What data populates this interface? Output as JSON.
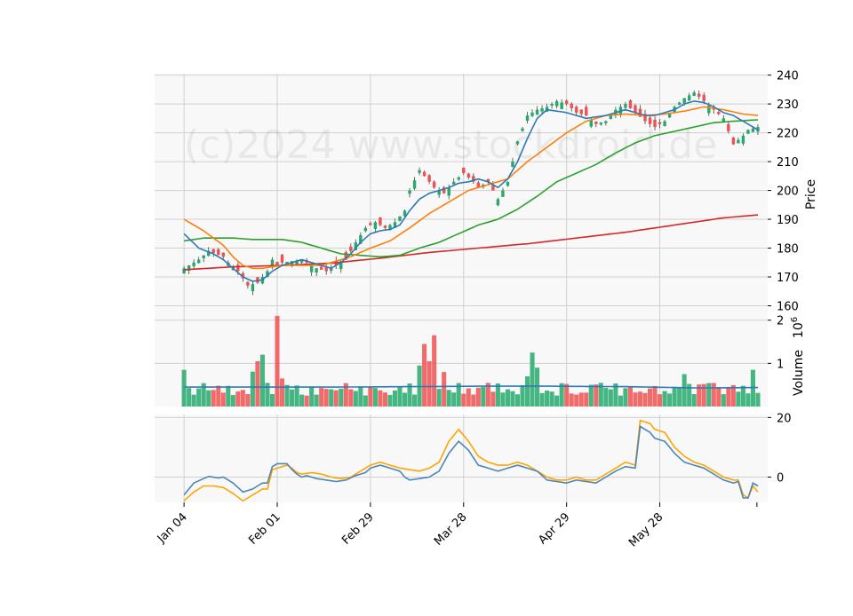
{
  "watermark": "(c)2024 www.stockdroid.de",
  "colors": {
    "panel_bg": "#f8f8f8",
    "grid": "#d0d0d0",
    "up": "#26a96c",
    "down": "#f05252",
    "sma10": "#2f7ab5",
    "sma20": "#ff7f0e",
    "sma50": "#2ca02c",
    "sma200": "#d62728",
    "volume_avg": "#2f7ab5",
    "osc_fast": "#4a86b8",
    "osc_slow": "#ffa500"
  },
  "axes": {
    "price_label": "Price",
    "volume_label": "Volume",
    "volume_exponent": "6",
    "price_ticks": [
      "160",
      "170",
      "180",
      "190",
      "200",
      "210",
      "220",
      "230",
      "240"
    ],
    "volume_ticks": [
      "1",
      "2"
    ],
    "osc_ticks": [
      "0",
      "20"
    ],
    "x_ticks": [
      "Jan 04",
      "Feb 01",
      "Feb 29",
      "Mar 28",
      "Apr 29",
      "May 28"
    ]
  },
  "chart_data": {
    "type": "candlestick",
    "x_tick_indices": [
      0,
      19,
      38,
      57,
      78,
      97
    ],
    "x_range": [
      -6,
      119
    ],
    "price_range": [
      158,
      240.5
    ],
    "volume_range": [
      0,
      2.2
    ],
    "osc_range": [
      -8.5,
      21
    ],
    "anchors": {
      "close": [
        [
          0,
          173
        ],
        [
          3,
          176
        ],
        [
          5,
          179
        ],
        [
          8,
          177
        ],
        [
          9,
          175
        ],
        [
          11,
          172
        ],
        [
          13,
          167
        ],
        [
          15,
          168
        ],
        [
          17,
          172
        ],
        [
          18,
          176
        ],
        [
          19,
          174
        ],
        [
          20,
          175
        ],
        [
          24,
          176
        ],
        [
          27,
          173
        ],
        [
          29,
          172
        ],
        [
          31,
          174
        ],
        [
          33,
          176
        ],
        [
          35,
          182
        ],
        [
          37,
          187
        ],
        [
          39,
          189
        ],
        [
          41,
          187
        ],
        [
          43,
          189
        ],
        [
          45,
          193
        ],
        [
          46,
          200
        ],
        [
          48,
          207
        ],
        [
          51,
          201
        ],
        [
          53,
          199
        ],
        [
          55,
          203
        ],
        [
          57,
          206
        ],
        [
          59,
          203
        ],
        [
          60,
          201
        ],
        [
          62,
          203
        ],
        [
          64,
          197
        ],
        [
          66,
          203
        ],
        [
          68,
          217
        ],
        [
          70,
          226
        ],
        [
          72,
          228
        ],
        [
          74,
          229
        ],
        [
          76,
          231
        ],
        [
          78,
          230
        ],
        [
          80,
          227
        ],
        [
          82,
          226
        ],
        [
          84,
          223
        ],
        [
          86,
          224
        ],
        [
          88,
          228
        ],
        [
          90,
          230
        ],
        [
          92,
          227
        ],
        [
          94,
          224
        ],
        [
          96,
          222
        ],
        [
          98,
          224
        ],
        [
          100,
          229
        ],
        [
          102,
          232
        ],
        [
          104,
          234
        ],
        [
          106,
          231
        ],
        [
          108,
          228
        ],
        [
          110,
          225
        ],
        [
          112,
          216
        ],
        [
          114,
          219
        ],
        [
          115,
          221
        ],
        [
          117,
          222
        ]
      ],
      "sma10": [
        [
          0,
          185
        ],
        [
          3,
          180
        ],
        [
          6,
          178
        ],
        [
          8,
          176
        ],
        [
          10,
          173
        ],
        [
          12,
          170
        ],
        [
          14,
          168.5
        ],
        [
          16,
          169
        ],
        [
          18,
          172
        ],
        [
          20,
          174
        ],
        [
          22,
          175
        ],
        [
          24,
          176
        ],
        [
          26,
          175
        ],
        [
          28,
          174
        ],
        [
          30,
          173
        ],
        [
          32,
          175
        ],
        [
          34,
          178
        ],
        [
          36,
          182
        ],
        [
          38,
          185
        ],
        [
          40,
          186
        ],
        [
          42,
          186.5
        ],
        [
          44,
          188
        ],
        [
          46,
          193
        ],
        [
          48,
          197
        ],
        [
          50,
          199
        ],
        [
          52,
          200
        ],
        [
          54,
          201
        ],
        [
          56,
          202.5
        ],
        [
          58,
          203
        ],
        [
          60,
          204
        ],
        [
          62,
          203
        ],
        [
          64,
          201
        ],
        [
          66,
          204
        ],
        [
          68,
          210
        ],
        [
          70,
          218
        ],
        [
          72,
          225
        ],
        [
          74,
          228
        ],
        [
          76,
          227.5
        ],
        [
          78,
          227
        ],
        [
          80,
          226
        ],
        [
          82,
          225
        ],
        [
          84,
          225.5
        ],
        [
          86,
          226
        ],
        [
          88,
          227
        ],
        [
          90,
          228
        ],
        [
          92,
          227
        ],
        [
          94,
          226
        ],
        [
          96,
          226
        ],
        [
          98,
          227
        ],
        [
          100,
          228
        ],
        [
          102,
          230
        ],
        [
          104,
          231
        ],
        [
          106,
          230.5
        ],
        [
          108,
          229
        ],
        [
          110,
          227
        ],
        [
          112,
          226
        ],
        [
          114,
          224
        ],
        [
          117,
          221
        ]
      ],
      "sma20": [
        [
          0,
          190
        ],
        [
          4,
          186
        ],
        [
          8,
          181
        ],
        [
          10,
          177
        ],
        [
          12,
          174
        ],
        [
          14,
          173
        ],
        [
          16,
          173
        ],
        [
          18,
          173.5
        ],
        [
          20,
          174
        ],
        [
          24,
          174
        ],
        [
          28,
          174
        ],
        [
          30,
          175
        ],
        [
          34,
          177
        ],
        [
          38,
          180
        ],
        [
          42,
          182.5
        ],
        [
          46,
          187
        ],
        [
          50,
          192
        ],
        [
          54,
          196
        ],
        [
          58,
          200
        ],
        [
          62,
          202
        ],
        [
          66,
          204
        ],
        [
          70,
          210
        ],
        [
          74,
          215
        ],
        [
          78,
          220
        ],
        [
          82,
          224
        ],
        [
          86,
          226
        ],
        [
          90,
          226.5
        ],
        [
          94,
          226
        ],
        [
          98,
          226.5
        ],
        [
          102,
          227.5
        ],
        [
          106,
          229
        ],
        [
          110,
          228
        ],
        [
          114,
          226.5
        ],
        [
          117,
          226
        ]
      ],
      "sma50": [
        [
          0,
          182.5
        ],
        [
          4,
          183.5
        ],
        [
          10,
          183.5
        ],
        [
          14,
          183
        ],
        [
          20,
          183
        ],
        [
          24,
          182
        ],
        [
          28,
          180
        ],
        [
          32,
          178
        ],
        [
          36,
          177.5
        ],
        [
          40,
          177
        ],
        [
          44,
          177.5
        ],
        [
          48,
          180
        ],
        [
          52,
          182
        ],
        [
          56,
          185
        ],
        [
          60,
          188
        ],
        [
          64,
          190
        ],
        [
          68,
          193.5
        ],
        [
          72,
          198
        ],
        [
          76,
          203
        ],
        [
          80,
          206
        ],
        [
          84,
          209
        ],
        [
          88,
          213
        ],
        [
          92,
          216.5
        ],
        [
          96,
          219
        ],
        [
          100,
          220.5
        ],
        [
          104,
          222
        ],
        [
          108,
          223.5
        ],
        [
          112,
          224
        ],
        [
          117,
          224.5
        ]
      ],
      "sma200": [
        [
          0,
          172.5
        ],
        [
          10,
          173.5
        ],
        [
          20,
          174
        ],
        [
          30,
          174.8
        ],
        [
          40,
          176.5
        ],
        [
          50,
          178.5
        ],
        [
          60,
          180
        ],
        [
          70,
          181.5
        ],
        [
          80,
          183.5
        ],
        [
          90,
          185.5
        ],
        [
          100,
          188
        ],
        [
          110,
          190.5
        ],
        [
          117,
          191.5
        ]
      ],
      "volume_avg": [
        [
          0,
          0.45
        ],
        [
          15,
          0.45
        ],
        [
          30,
          0.45
        ],
        [
          45,
          0.46
        ],
        [
          60,
          0.47
        ],
        [
          75,
          0.47
        ],
        [
          90,
          0.46
        ],
        [
          105,
          0.43
        ],
        [
          117,
          0.44
        ]
      ],
      "osc_fast": [
        [
          0,
          -6
        ],
        [
          2,
          -2
        ],
        [
          4,
          -0.5
        ],
        [
          5,
          0.2
        ],
        [
          7,
          -0.3
        ],
        [
          8,
          0
        ],
        [
          10,
          -2
        ],
        [
          12,
          -5
        ],
        [
          14,
          -4
        ],
        [
          15,
          -3
        ],
        [
          16,
          -2
        ],
        [
          17,
          -2
        ],
        [
          18,
          3.5
        ],
        [
          19,
          4.5
        ],
        [
          21,
          4.5
        ],
        [
          22,
          2.5
        ],
        [
          23,
          1
        ],
        [
          24,
          0
        ],
        [
          25,
          0.5
        ],
        [
          27,
          -0.5
        ],
        [
          29,
          -1
        ],
        [
          31,
          -1.5
        ],
        [
          33,
          -1
        ],
        [
          35,
          0.5
        ],
        [
          37,
          1.5
        ],
        [
          38,
          3
        ],
        [
          40,
          4
        ],
        [
          42,
          3
        ],
        [
          44,
          2
        ],
        [
          45,
          0
        ],
        [
          46,
          -1
        ],
        [
          48,
          -0.5
        ],
        [
          50,
          0
        ],
        [
          52,
          2
        ],
        [
          54,
          8
        ],
        [
          56,
          12
        ],
        [
          58,
          9
        ],
        [
          60,
          4
        ],
        [
          62,
          3
        ],
        [
          64,
          2
        ],
        [
          66,
          3
        ],
        [
          68,
          4
        ],
        [
          70,
          3
        ],
        [
          72,
          2
        ],
        [
          74,
          -1
        ],
        [
          76,
          -1.5
        ],
        [
          78,
          -2
        ],
        [
          80,
          -1
        ],
        [
          82,
          -1.5
        ],
        [
          84,
          -2
        ],
        [
          86,
          0
        ],
        [
          88,
          2
        ],
        [
          90,
          3.5
        ],
        [
          92,
          3
        ],
        [
          93,
          17
        ],
        [
          95,
          15
        ],
        [
          96,
          13
        ],
        [
          98,
          12
        ],
        [
          100,
          8
        ],
        [
          102,
          5
        ],
        [
          104,
          4
        ],
        [
          106,
          3
        ],
        [
          108,
          1
        ],
        [
          110,
          -1
        ],
        [
          112,
          -2
        ],
        [
          113,
          -1.5
        ],
        [
          114,
          -7
        ],
        [
          115,
          -7
        ],
        [
          116,
          -2
        ],
        [
          117,
          -3
        ]
      ],
      "osc_slow": [
        [
          0,
          -8
        ],
        [
          2,
          -5
        ],
        [
          4,
          -3
        ],
        [
          6,
          -3
        ],
        [
          8,
          -3.5
        ],
        [
          10,
          -5.5
        ],
        [
          12,
          -8
        ],
        [
          14,
          -6
        ],
        [
          16,
          -4
        ],
        [
          17,
          -4
        ],
        [
          18,
          2.5
        ],
        [
          19,
          3
        ],
        [
          21,
          4
        ],
        [
          22,
          3
        ],
        [
          23,
          1.5
        ],
        [
          24,
          1
        ],
        [
          26,
          1.5
        ],
        [
          28,
          1
        ],
        [
          30,
          0
        ],
        [
          32,
          -0.5
        ],
        [
          34,
          0
        ],
        [
          36,
          2
        ],
        [
          38,
          4
        ],
        [
          40,
          5
        ],
        [
          42,
          4
        ],
        [
          44,
          3
        ],
        [
          46,
          2.5
        ],
        [
          48,
          2
        ],
        [
          50,
          3
        ],
        [
          52,
          5
        ],
        [
          54,
          12
        ],
        [
          56,
          16
        ],
        [
          58,
          12
        ],
        [
          60,
          7
        ],
        [
          62,
          5
        ],
        [
          64,
          4
        ],
        [
          66,
          4
        ],
        [
          68,
          5
        ],
        [
          70,
          4
        ],
        [
          72,
          2
        ],
        [
          74,
          0
        ],
        [
          76,
          -1
        ],
        [
          78,
          -1
        ],
        [
          80,
          0
        ],
        [
          82,
          -1
        ],
        [
          84,
          -1
        ],
        [
          86,
          1
        ],
        [
          88,
          3
        ],
        [
          90,
          5
        ],
        [
          92,
          4
        ],
        [
          93,
          19
        ],
        [
          95,
          18
        ],
        [
          96,
          16
        ],
        [
          98,
          15
        ],
        [
          100,
          10
        ],
        [
          102,
          7
        ],
        [
          104,
          5
        ],
        [
          106,
          4
        ],
        [
          108,
          2
        ],
        [
          110,
          0
        ],
        [
          112,
          -1
        ],
        [
          113,
          -1
        ],
        [
          114,
          -6
        ],
        [
          115,
          -7
        ],
        [
          116,
          -3
        ],
        [
          117,
          -5
        ]
      ]
    }
  }
}
